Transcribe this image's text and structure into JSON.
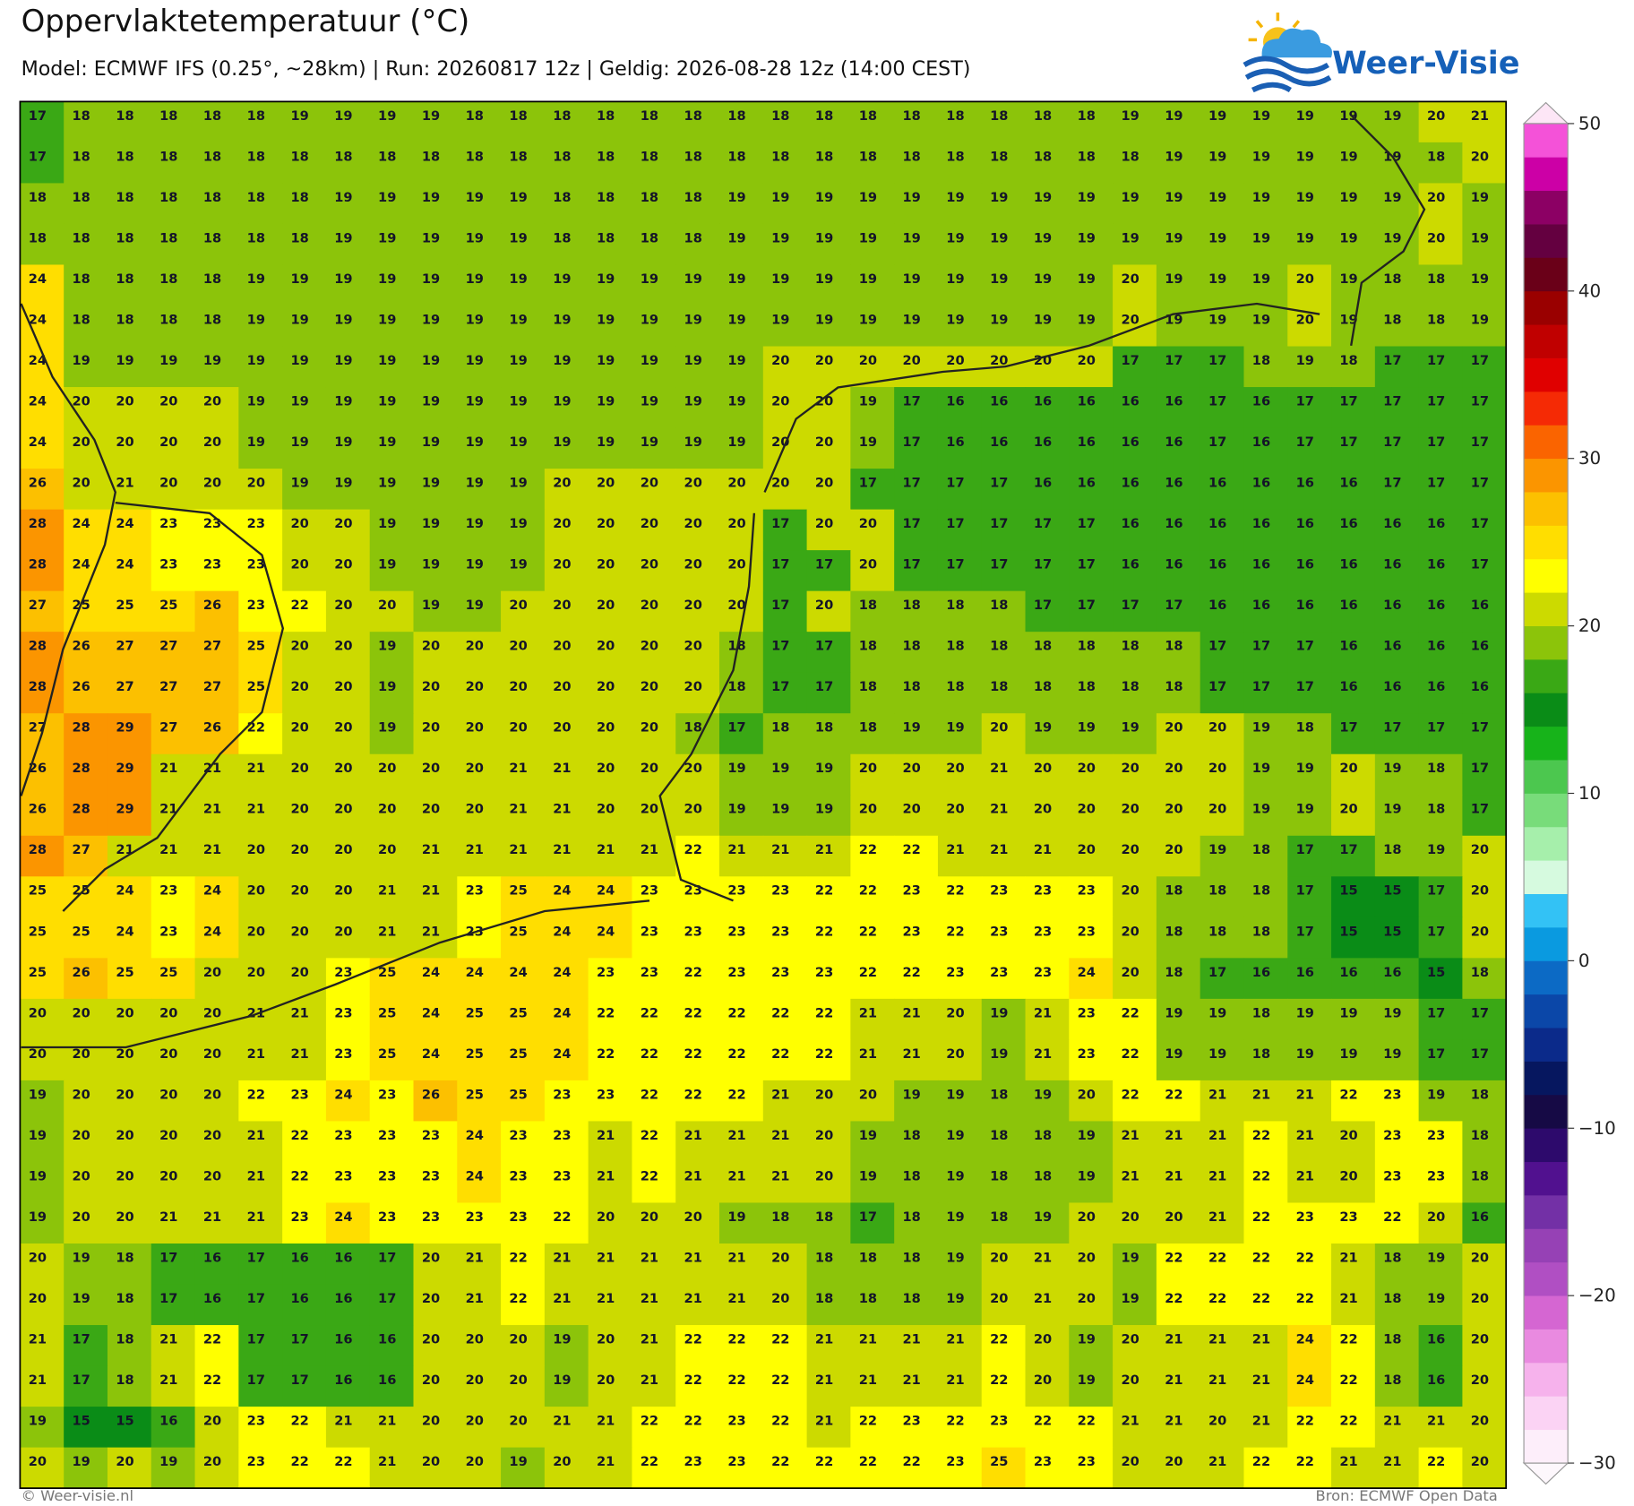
{
  "header": {
    "title": "Oppervlaktetemperatuur (°C)",
    "subtitle": "Model: ECMWF IFS (0.25°, ~28km)  |  Run: 20260817 12z  |  Geldig: 2026-08-28 12z (14:00 CEST)"
  },
  "logo": {
    "text": "Weer-Visie"
  },
  "map": {
    "rows": [
      [
        17,
        18,
        18,
        18,
        18,
        18,
        19,
        19,
        19,
        19,
        18,
        18,
        18,
        18,
        18,
        18,
        18,
        18,
        18,
        18,
        18,
        18,
        18,
        18,
        18,
        19,
        19,
        19,
        19,
        19,
        19,
        19,
        20,
        21
      ],
      [
        17,
        18,
        18,
        18,
        18,
        18,
        18,
        18,
        18,
        18,
        18,
        18,
        18,
        18,
        18,
        18,
        18,
        18,
        18,
        18,
        18,
        18,
        18,
        18,
        18,
        18,
        19,
        19,
        19,
        19,
        19,
        19,
        18,
        20
      ],
      [
        18,
        18,
        18,
        18,
        18,
        18,
        18,
        19,
        19,
        19,
        19,
        19,
        18,
        18,
        18,
        18,
        19,
        19,
        19,
        19,
        19,
        19,
        19,
        19,
        19,
        19,
        19,
        19,
        19,
        19,
        19,
        19,
        20,
        19
      ],
      [
        18,
        18,
        18,
        18,
        18,
        18,
        18,
        19,
        19,
        19,
        19,
        19,
        18,
        18,
        18,
        18,
        19,
        19,
        19,
        19,
        19,
        19,
        19,
        19,
        19,
        19,
        19,
        19,
        19,
        19,
        19,
        19,
        20,
        19
      ],
      [
        24,
        18,
        18,
        18,
        18,
        19,
        19,
        19,
        19,
        19,
        19,
        19,
        19,
        19,
        19,
        19,
        19,
        19,
        19,
        19,
        19,
        19,
        19,
        19,
        19,
        20,
        19,
        19,
        19,
        20,
        19,
        18,
        18,
        19
      ],
      [
        24,
        18,
        18,
        18,
        18,
        19,
        19,
        19,
        19,
        19,
        19,
        19,
        19,
        19,
        19,
        19,
        19,
        19,
        19,
        19,
        19,
        19,
        19,
        19,
        19,
        20,
        19,
        19,
        19,
        20,
        19,
        18,
        18,
        19
      ],
      [
        24,
        19,
        19,
        19,
        19,
        19,
        19,
        19,
        19,
        19,
        19,
        19,
        19,
        19,
        19,
        19,
        19,
        20,
        20,
        20,
        20,
        20,
        20,
        20,
        20,
        17,
        17,
        17,
        18,
        19,
        18,
        17,
        17,
        17
      ],
      [
        24,
        20,
        20,
        20,
        20,
        19,
        19,
        19,
        19,
        19,
        19,
        19,
        19,
        19,
        19,
        19,
        19,
        20,
        20,
        19,
        17,
        16,
        16,
        16,
        16,
        16,
        16,
        17,
        16,
        17,
        17,
        17,
        17,
        17
      ],
      [
        24,
        20,
        20,
        20,
        20,
        19,
        19,
        19,
        19,
        19,
        19,
        19,
        19,
        19,
        19,
        19,
        19,
        20,
        20,
        19,
        17,
        16,
        16,
        16,
        16,
        16,
        16,
        17,
        16,
        17,
        17,
        17,
        17,
        17
      ],
      [
        26,
        20,
        21,
        20,
        20,
        20,
        19,
        19,
        19,
        19,
        19,
        19,
        20,
        20,
        20,
        20,
        20,
        20,
        20,
        17,
        17,
        17,
        17,
        16,
        16,
        16,
        16,
        16,
        16,
        16,
        16,
        17,
        17,
        17
      ],
      [
        28,
        24,
        24,
        23,
        23,
        23,
        20,
        20,
        19,
        19,
        19,
        19,
        20,
        20,
        20,
        20,
        20,
        17,
        20,
        20,
        17,
        17,
        17,
        17,
        17,
        16,
        16,
        16,
        16,
        16,
        16,
        16,
        16,
        17
      ],
      [
        28,
        24,
        24,
        23,
        23,
        23,
        20,
        20,
        19,
        19,
        19,
        19,
        20,
        20,
        20,
        20,
        20,
        17,
        17,
        20,
        17,
        17,
        17,
        17,
        17,
        16,
        16,
        16,
        16,
        16,
        16,
        16,
        16,
        17
      ],
      [
        27,
        25,
        25,
        25,
        26,
        23,
        22,
        20,
        20,
        19,
        19,
        20,
        20,
        20,
        20,
        20,
        20,
        17,
        20,
        18,
        18,
        18,
        18,
        17,
        17,
        17,
        17,
        16,
        16,
        16,
        16,
        16,
        16,
        16
      ],
      [
        28,
        26,
        27,
        27,
        27,
        25,
        20,
        20,
        19,
        20,
        20,
        20,
        20,
        20,
        20,
        20,
        18,
        17,
        17,
        18,
        18,
        18,
        18,
        18,
        18,
        18,
        18,
        17,
        17,
        17,
        16,
        16,
        16,
        16
      ],
      [
        28,
        26,
        27,
        27,
        27,
        25,
        20,
        20,
        19,
        20,
        20,
        20,
        20,
        20,
        20,
        20,
        18,
        17,
        17,
        18,
        18,
        18,
        18,
        18,
        18,
        18,
        18,
        17,
        17,
        17,
        16,
        16,
        16,
        16
      ],
      [
        27,
        28,
        29,
        27,
        26,
        22,
        20,
        20,
        19,
        20,
        20,
        20,
        20,
        20,
        20,
        18,
        17,
        18,
        18,
        18,
        19,
        19,
        20,
        19,
        19,
        19,
        20,
        20,
        19,
        18,
        17,
        17,
        17,
        17
      ],
      [
        26,
        28,
        29,
        21,
        21,
        21,
        20,
        20,
        20,
        20,
        20,
        21,
        21,
        20,
        20,
        20,
        19,
        19,
        19,
        20,
        20,
        20,
        21,
        20,
        20,
        20,
        20,
        20,
        19,
        19,
        20,
        19,
        18,
        17
      ],
      [
        26,
        28,
        29,
        21,
        21,
        21,
        20,
        20,
        20,
        20,
        20,
        21,
        21,
        20,
        20,
        20,
        19,
        19,
        19,
        20,
        20,
        20,
        21,
        20,
        20,
        20,
        20,
        20,
        19,
        19,
        20,
        19,
        18,
        17
      ],
      [
        28,
        27,
        21,
        21,
        21,
        20,
        20,
        20,
        20,
        21,
        21,
        21,
        21,
        21,
        21,
        22,
        21,
        21,
        21,
        22,
        22,
        21,
        21,
        21,
        20,
        20,
        20,
        19,
        18,
        17,
        17,
        18,
        19,
        20
      ],
      [
        25,
        25,
        24,
        23,
        24,
        20,
        20,
        20,
        21,
        21,
        23,
        25,
        24,
        24,
        23,
        23,
        23,
        23,
        22,
        22,
        23,
        22,
        23,
        23,
        23,
        20,
        18,
        18,
        18,
        17,
        15,
        15,
        17,
        20
      ],
      [
        25,
        25,
        24,
        23,
        24,
        20,
        20,
        20,
        21,
        21,
        23,
        25,
        24,
        24,
        23,
        23,
        23,
        23,
        22,
        22,
        23,
        22,
        23,
        23,
        23,
        20,
        18,
        18,
        18,
        17,
        15,
        15,
        17,
        20
      ],
      [
        25,
        26,
        25,
        25,
        20,
        20,
        20,
        23,
        25,
        24,
        24,
        24,
        24,
        23,
        23,
        22,
        23,
        23,
        23,
        22,
        22,
        23,
        23,
        23,
        24,
        20,
        18,
        17,
        16,
        16,
        16,
        16,
        15,
        18
      ],
      [
        20,
        20,
        20,
        20,
        20,
        21,
        21,
        23,
        25,
        24,
        25,
        25,
        24,
        22,
        22,
        22,
        22,
        22,
        22,
        21,
        21,
        20,
        19,
        21,
        23,
        22,
        19,
        19,
        18,
        19,
        19,
        19,
        17,
        17
      ],
      [
        20,
        20,
        20,
        20,
        20,
        21,
        21,
        23,
        25,
        24,
        25,
        25,
        24,
        22,
        22,
        22,
        22,
        22,
        22,
        21,
        21,
        20,
        19,
        21,
        23,
        22,
        19,
        19,
        18,
        19,
        19,
        19,
        17,
        17
      ],
      [
        19,
        20,
        20,
        20,
        20,
        22,
        23,
        24,
        23,
        26,
        25,
        25,
        23,
        23,
        22,
        22,
        22,
        21,
        20,
        20,
        19,
        19,
        18,
        19,
        20,
        22,
        22,
        21,
        21,
        21,
        22,
        23,
        19,
        18
      ],
      [
        19,
        20,
        20,
        20,
        20,
        21,
        22,
        23,
        23,
        23,
        24,
        23,
        23,
        21,
        22,
        21,
        21,
        21,
        20,
        19,
        18,
        19,
        18,
        18,
        19,
        21,
        21,
        21,
        22,
        21,
        20,
        23,
        23,
        18
      ],
      [
        19,
        20,
        20,
        20,
        20,
        21,
        22,
        23,
        23,
        23,
        24,
        23,
        23,
        21,
        22,
        21,
        21,
        21,
        20,
        19,
        18,
        19,
        18,
        18,
        19,
        21,
        21,
        21,
        22,
        21,
        20,
        23,
        23,
        18
      ],
      [
        19,
        20,
        20,
        21,
        21,
        21,
        23,
        24,
        23,
        23,
        23,
        23,
        22,
        20,
        20,
        20,
        19,
        18,
        18,
        17,
        18,
        19,
        18,
        19,
        20,
        20,
        20,
        21,
        22,
        23,
        23,
        22,
        20,
        16
      ],
      [
        20,
        19,
        18,
        17,
        16,
        17,
        16,
        16,
        17,
        20,
        21,
        22,
        21,
        21,
        21,
        21,
        21,
        20,
        18,
        18,
        18,
        19,
        20,
        21,
        20,
        19,
        22,
        22,
        22,
        22,
        21,
        18,
        19,
        20
      ],
      [
        20,
        19,
        18,
        17,
        16,
        17,
        16,
        16,
        17,
        20,
        21,
        22,
        21,
        21,
        21,
        21,
        21,
        20,
        18,
        18,
        18,
        19,
        20,
        21,
        20,
        19,
        22,
        22,
        22,
        22,
        21,
        18,
        19,
        20
      ],
      [
        21,
        17,
        18,
        21,
        22,
        17,
        17,
        16,
        16,
        20,
        20,
        20,
        19,
        20,
        21,
        22,
        22,
        22,
        21,
        21,
        21,
        21,
        22,
        20,
        19,
        20,
        21,
        21,
        21,
        24,
        22,
        18,
        16,
        20
      ],
      [
        21,
        17,
        18,
        21,
        22,
        17,
        17,
        16,
        16,
        20,
        20,
        20,
        19,
        20,
        21,
        22,
        22,
        22,
        21,
        21,
        21,
        21,
        22,
        20,
        19,
        20,
        21,
        21,
        21,
        24,
        22,
        18,
        16,
        20
      ],
      [
        19,
        15,
        15,
        16,
        20,
        23,
        22,
        21,
        21,
        20,
        20,
        20,
        21,
        21,
        22,
        22,
        23,
        22,
        21,
        22,
        23,
        22,
        23,
        22,
        22,
        21,
        21,
        20,
        21,
        22,
        22,
        21,
        21,
        20
      ],
      [
        20,
        19,
        20,
        19,
        20,
        23,
        22,
        22,
        21,
        20,
        20,
        19,
        20,
        21,
        22,
        23,
        23,
        22,
        22,
        22,
        22,
        23,
        25,
        23,
        23,
        20,
        20,
        21,
        22,
        22,
        21,
        21,
        22,
        20
      ]
    ],
    "colorbar": {
      "lim": [
        -30,
        50
      ],
      "ticks": [
        {
          "value": -30,
          "label": "−30"
        },
        {
          "value": -20,
          "label": "−20"
        },
        {
          "value": -10,
          "label": "−10"
        },
        0,
        10,
        20,
        30,
        40,
        50
      ],
      "colors": [
        "#fdeefa",
        "#fbd3f4",
        "#f6b2ec",
        "#e98ae0",
        "#d566d2",
        "#b04fc3",
        "#9641b5",
        "#7330a6",
        "#51118f",
        "#2d0a6c",
        "#160a45",
        "#06175f",
        "#0b2a8a",
        "#0b47a8",
        "#0c6ac5",
        "#0a9ae0",
        "#33c2f5",
        "#d6fadf",
        "#a6efab",
        "#78dc7a",
        "#4cc74f",
        "#17b31a",
        "#0a8c17",
        "#3aa815",
        "#8cc40a",
        "#ccda00",
        "#ffff00",
        "#ffde00",
        "#fcc000",
        "#fb9500",
        "#fa6400",
        "#f52a05",
        "#e00000",
        "#c00000",
        "#9a0000",
        "#6a0018",
        "#640040",
        "#8c0064",
        "#cc00a6",
        "#f452d8"
      ]
    }
  },
  "footer": {
    "credit": "© Weer-visie.nl",
    "source": "Bron: ECMWF Open Data"
  }
}
